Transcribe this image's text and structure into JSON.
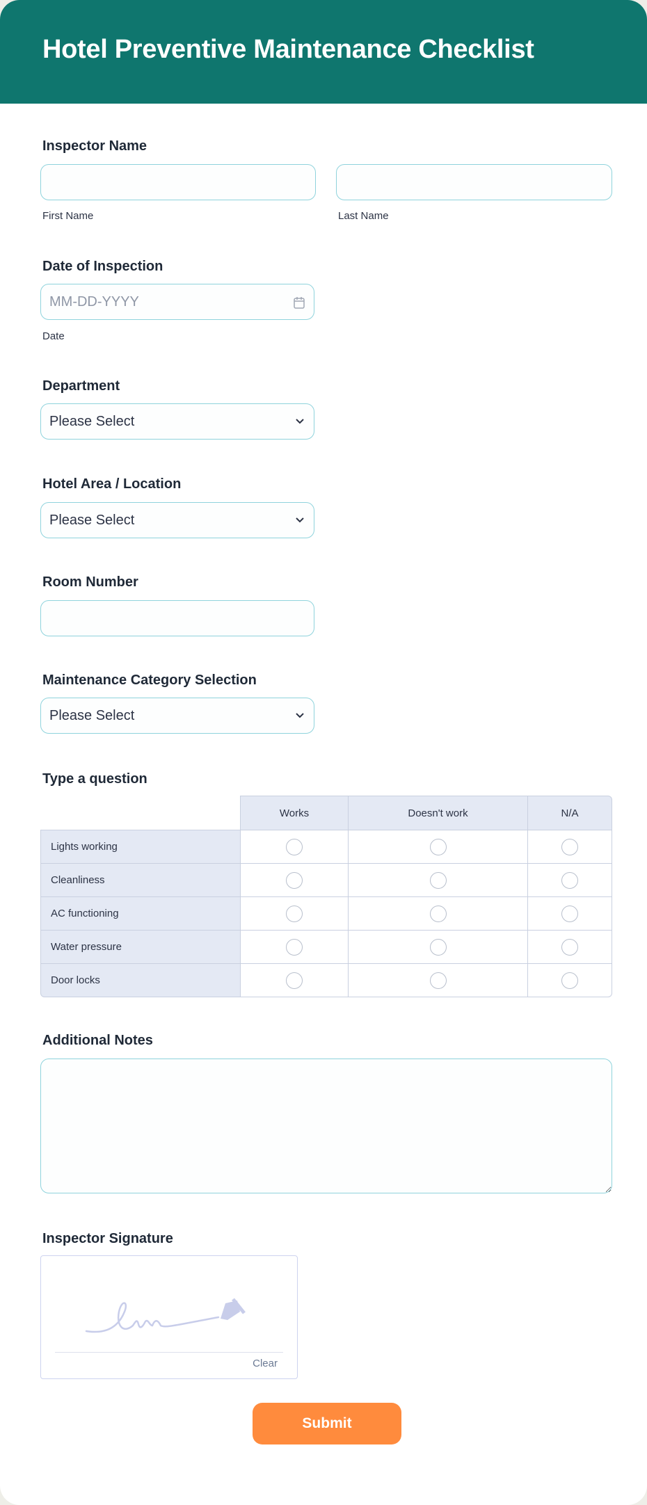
{
  "title": "Hotel Preventive Maintenance Checklist",
  "colors": {
    "header": "#0f766e",
    "submit": "#ff8b3d",
    "input_border": "#8fd3dc"
  },
  "inspector_name": {
    "label": "Inspector Name",
    "first_label": "First Name",
    "last_label": "Last Name",
    "first_value": "",
    "last_value": ""
  },
  "date": {
    "label": "Date of Inspection",
    "placeholder": "MM-DD-YYYY",
    "sublabel": "Date",
    "icon": "calendar-icon"
  },
  "department": {
    "label": "Department",
    "selected": "Please Select"
  },
  "hotel_area": {
    "label": "Hotel Area / Location",
    "selected": "Please Select"
  },
  "room_number": {
    "label": "Room Number",
    "value": ""
  },
  "maintenance_category": {
    "label": "Maintenance Category Selection",
    "selected": "Please Select"
  },
  "matrix": {
    "label": "Type a question",
    "columns": [
      "Works",
      "Doesn't work",
      "N/A"
    ],
    "rows": [
      "Lights working",
      "Cleanliness",
      "AC functioning",
      "Water pressure",
      "Door locks"
    ]
  },
  "notes": {
    "label": "Additional Notes",
    "value": ""
  },
  "signature": {
    "label": "Inspector Signature",
    "clear": "Clear"
  },
  "submit": "Submit"
}
